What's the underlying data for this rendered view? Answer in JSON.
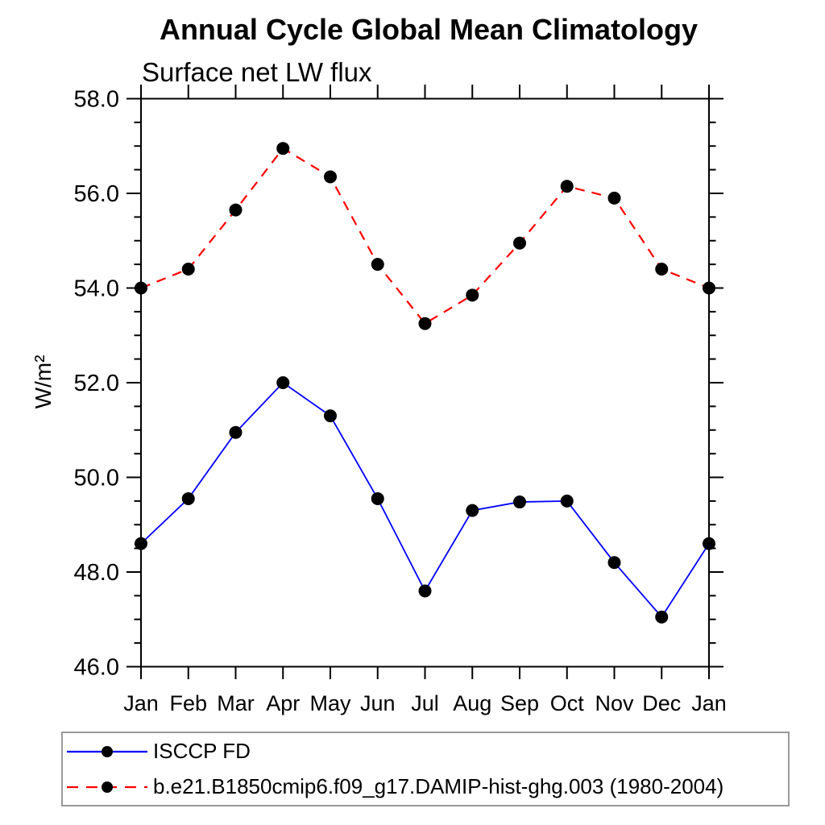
{
  "chart_data": {
    "type": "line",
    "title": "Annual Cycle Global Mean Climatology",
    "subtitle": "Surface net LW flux",
    "ylabel": "W/m²",
    "categories": [
      "Jan",
      "Feb",
      "Mar",
      "Apr",
      "May",
      "Jun",
      "Jul",
      "Aug",
      "Sep",
      "Oct",
      "Nov",
      "Dec",
      "Jan"
    ],
    "series": [
      {
        "name": "ISCCP FD",
        "color": "#0000ff",
        "line_style": "solid",
        "marker": "filled-circle",
        "marker_color": "#000000",
        "values": [
          48.6,
          49.55,
          50.95,
          52.0,
          51.3,
          49.55,
          47.6,
          49.3,
          49.48,
          49.5,
          48.2,
          47.05,
          48.6
        ]
      },
      {
        "name": "b.e21.B1850cmip6.f09_g17.DAMIP-hist-ghg.003 (1980-2004)",
        "color": "#ff0000",
        "line_style": "dashed",
        "marker": "filled-circle",
        "marker_color": "#000000",
        "values": [
          54.0,
          54.4,
          55.65,
          56.95,
          56.35,
          54.5,
          53.25,
          53.85,
          54.95,
          56.15,
          55.9,
          54.4,
          54.0
        ]
      }
    ],
    "ylim": [
      46.0,
      58.0
    ],
    "y_major_tick_step": 2.0,
    "y_minor_tick_step": 0.5,
    "y_tick_labels": [
      "46.0",
      "48.0",
      "50.0",
      "52.0",
      "54.0",
      "56.0",
      "58.0"
    ],
    "grid": false,
    "frame": "box-with-outward-ticks",
    "axis_color": "#000000",
    "legend_position": "bottom-left"
  }
}
